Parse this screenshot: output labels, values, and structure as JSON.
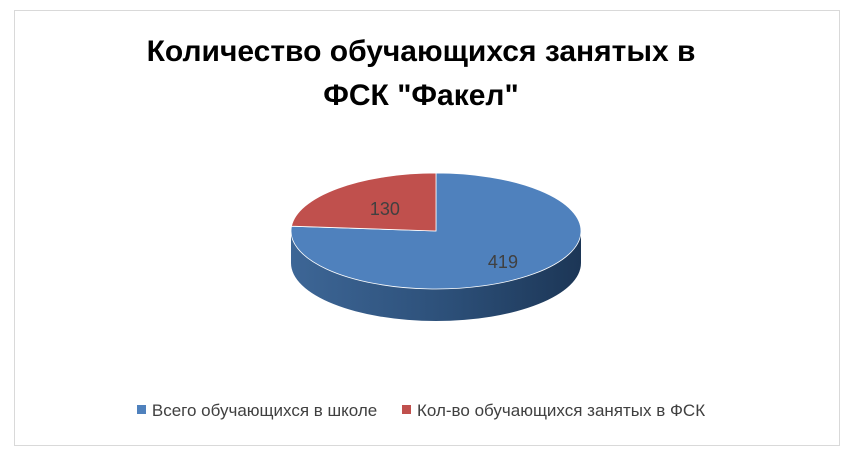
{
  "chart_data": {
    "type": "pie",
    "style": "3d",
    "title": "Количество обучающихся занятых в ФСК \"Факел\"",
    "title_lines": [
      "Количество обучающихся занятых в",
      "ФСК \"Факел\""
    ],
    "categories": [
      "Всего обучающихся в школе",
      "Кол-во обучающихся занятых в ФСК"
    ],
    "values": [
      419,
      130
    ],
    "data_labels": [
      "419",
      "130"
    ],
    "colors": [
      "#4f81bd",
      "#c0504d"
    ],
    "legend_position": "bottom"
  }
}
